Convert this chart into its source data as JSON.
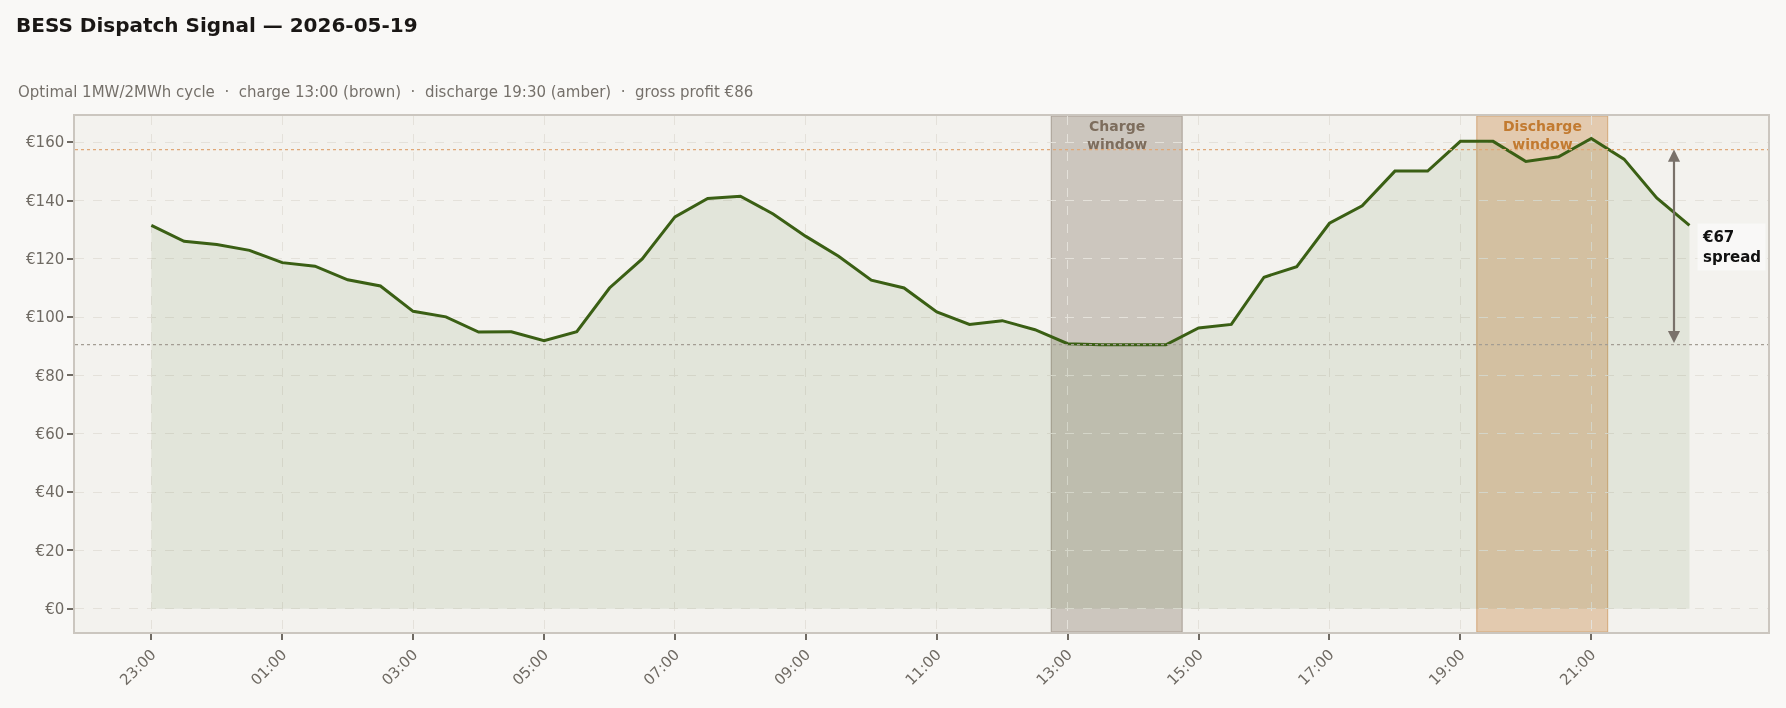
{
  "chart_data": {
    "type": "area",
    "title": "BESS Dispatch Signal — 2026-05-19",
    "subtitle": "Optimal 1MW/2MWh cycle  ·  charge 13:00 (brown)  ·  discharge 19:30 (amber)  ·  gross profit €86",
    "x": [
      "2026-05-18T23:00",
      "2026-05-18T23:30",
      "2026-05-19T00:00",
      "2026-05-19T00:30",
      "2026-05-19T01:00",
      "2026-05-19T01:30",
      "2026-05-19T02:00",
      "2026-05-19T02:30",
      "2026-05-19T03:00",
      "2026-05-19T03:30",
      "2026-05-19T04:00",
      "2026-05-19T04:30",
      "2026-05-19T05:00",
      "2026-05-19T05:30",
      "2026-05-19T06:00",
      "2026-05-19T06:30",
      "2026-05-19T07:00",
      "2026-05-19T07:30",
      "2026-05-19T08:00",
      "2026-05-19T08:30",
      "2026-05-19T09:00",
      "2026-05-19T09:30",
      "2026-05-19T10:00",
      "2026-05-19T10:30",
      "2026-05-19T11:00",
      "2026-05-19T11:30",
      "2026-05-19T12:00",
      "2026-05-19T12:30",
      "2026-05-19T13:00",
      "2026-05-19T13:30",
      "2026-05-19T14:00",
      "2026-05-19T14:30",
      "2026-05-19T15:00",
      "2026-05-19T15:30",
      "2026-05-19T16:00",
      "2026-05-19T16:30",
      "2026-05-19T17:00",
      "2026-05-19T17:30",
      "2026-05-19T18:00",
      "2026-05-19T18:30",
      "2026-05-19T19:00",
      "2026-05-19T19:30",
      "2026-05-19T20:00",
      "2026-05-19T20:30",
      "2026-05-19T21:00",
      "2026-05-19T21:30",
      "2026-05-19T22:00",
      "2026-05-19T22:30"
    ],
    "series": [
      {
        "color": "#3a5f14",
        "values": [
          131.5,
          126.0,
          124.9,
          122.9,
          118.7,
          117.5,
          112.8,
          110.7,
          102.0,
          100.1,
          94.9,
          95.0,
          91.9,
          95.0,
          110.0,
          120.0,
          134.4,
          140.7,
          141.5,
          135.4,
          127.7,
          120.9,
          112.7,
          110.0,
          101.8,
          97.5,
          98.8,
          95.7,
          90.9,
          90.5,
          90.5,
          90.5,
          96.3,
          97.5,
          113.7,
          117.3,
          132.2,
          138.2,
          150.1,
          150.1,
          160.3,
          160.3,
          153.4,
          155.0,
          161.3,
          154.2,
          140.9,
          131.5
        ]
      }
    ],
    "line_style": "solid",
    "xlim": [
      "2026-05-18T21:50",
      "2026-05-19T23:42"
    ],
    "xticks": [
      {
        "value": "2026-05-18T23:00",
        "label": "23:00"
      },
      {
        "value": "2026-05-19T01:00",
        "label": "01:00"
      },
      {
        "value": "2026-05-19T03:00",
        "label": "03:00"
      },
      {
        "value": "2026-05-19T05:00",
        "label": "05:00"
      },
      {
        "value": "2026-05-19T07:00",
        "label": "07:00"
      },
      {
        "value": "2026-05-19T09:00",
        "label": "09:00"
      },
      {
        "value": "2026-05-19T11:00",
        "label": "11:00"
      },
      {
        "value": "2026-05-19T13:00",
        "label": "13:00"
      },
      {
        "value": "2026-05-19T15:00",
        "label": "15:00"
      },
      {
        "value": "2026-05-19T17:00",
        "label": "17:00"
      },
      {
        "value": "2026-05-19T19:00",
        "label": "19:00"
      },
      {
        "value": "2026-05-19T21:00",
        "label": "21:00"
      }
    ],
    "ylim": [
      -8,
      169
    ],
    "yticks": [
      {
        "value": 0,
        "label": "€0"
      },
      {
        "value": 20,
        "label": "€20"
      },
      {
        "value": 40,
        "label": "€40"
      },
      {
        "value": 60,
        "label": "€60"
      },
      {
        "value": 80,
        "label": "€80"
      },
      {
        "value": 100,
        "label": "€100"
      },
      {
        "value": 120,
        "label": "€120"
      },
      {
        "value": 140,
        "label": "€140"
      },
      {
        "value": 160,
        "label": "€160"
      }
    ],
    "grid": true,
    "bands": [
      {
        "axis": "x",
        "from": "2026-05-19T12:45",
        "to": "2026-05-19T14:45",
        "label": "Charge\nwindow",
        "color": "#7d6d5d"
      },
      {
        "axis": "x",
        "from": "2026-05-19T19:15",
        "to": "2026-05-19T21:15",
        "label": "Discharge\nwindow",
        "color": "#c27a30"
      }
    ],
    "ref_lines": [
      {
        "axis": "y",
        "value": 90.6,
        "color": "#a39d93",
        "line_style": "dotted"
      },
      {
        "axis": "y",
        "value": 157.5,
        "color": "#e0a878",
        "line_style": "dotted"
      }
    ],
    "annotations": [
      "€67\nspread"
    ]
  }
}
